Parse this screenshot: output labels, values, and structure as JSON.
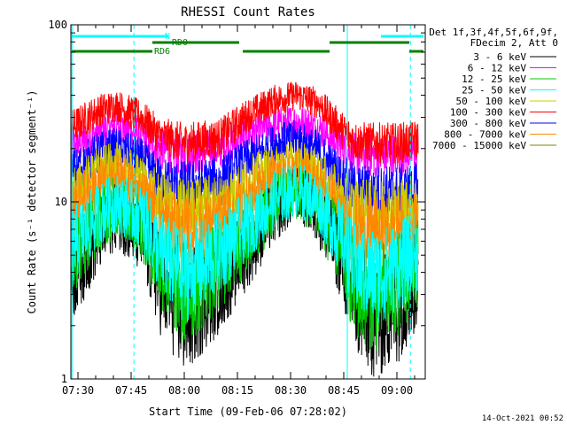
{
  "chart_data": {
    "type": "line",
    "title": "RHESSI Count Rates",
    "xlabel": "Start Time (09-Feb-06 07:28:02)",
    "ylabel": "Count Rate (s⁻¹ detector segment⁻¹)",
    "yscale": "log",
    "ylim": [
      1,
      100
    ],
    "xlim_minutes_since_0728": [
      0,
      100
    ],
    "x_ticks": [
      {
        "label": "07:30",
        "minute": 2
      },
      {
        "label": "07:45",
        "minute": 17
      },
      {
        "label": "08:00",
        "minute": 32
      },
      {
        "label": "08:15",
        "minute": 47
      },
      {
        "label": "08:30",
        "minute": 62
      },
      {
        "label": "08:45",
        "minute": 77
      },
      {
        "label": "09:00",
        "minute": 92
      }
    ],
    "y_tick_labels": [
      "1",
      "10",
      "100"
    ],
    "legend_header": [
      "Det 1f,3f,4f,5f,6f,9f,",
      "FDecim 2, Att 0"
    ],
    "legend_position": "right",
    "series": [
      {
        "name": "3 - 6 keV",
        "color": "#000000",
        "points": [
          [
            0,
            3.8
          ],
          [
            8,
            6.5
          ],
          [
            13,
            8.5
          ],
          [
            20,
            6.2
          ],
          [
            25,
            3.5
          ],
          [
            32,
            2.3
          ],
          [
            42,
            3.5
          ],
          [
            50,
            5.5
          ],
          [
            58,
            9.0
          ],
          [
            64,
            11.5
          ],
          [
            70,
            8.5
          ],
          [
            76,
            5.0
          ],
          [
            80,
            2.8
          ],
          [
            86,
            2.2
          ],
          [
            92,
            2.6
          ],
          [
            98,
            3.6
          ]
        ]
      },
      {
        "name": "6 - 12 keV",
        "color": "#ff00ff",
        "points": [
          [
            0,
            20
          ],
          [
            8,
            25
          ],
          [
            13,
            27
          ],
          [
            20,
            24
          ],
          [
            25,
            20
          ],
          [
            32,
            18.5
          ],
          [
            42,
            20
          ],
          [
            50,
            24
          ],
          [
            58,
            27.5
          ],
          [
            64,
            28.5
          ],
          [
            70,
            26
          ],
          [
            76,
            21
          ],
          [
            80,
            18.5
          ],
          [
            86,
            18.3
          ],
          [
            92,
            18.4
          ],
          [
            98,
            19.5
          ]
        ]
      },
      {
        "name": "12 - 25 keV",
        "color": "#00cc00",
        "points": [
          [
            0,
            5.0
          ],
          [
            8,
            8.0
          ],
          [
            13,
            9.5
          ],
          [
            20,
            7.5
          ],
          [
            25,
            4.5
          ],
          [
            32,
            3.0
          ],
          [
            42,
            4.3
          ],
          [
            50,
            6.5
          ],
          [
            58,
            10.0
          ],
          [
            64,
            11.5
          ],
          [
            70,
            9.0
          ],
          [
            76,
            5.5
          ],
          [
            80,
            3.3
          ],
          [
            86,
            2.9
          ],
          [
            92,
            3.4
          ],
          [
            98,
            4.4
          ]
        ]
      },
      {
        "name": "25 - 50 keV",
        "color": "#00ffff",
        "points": [
          [
            0,
            5.5
          ],
          [
            8,
            8.5
          ],
          [
            13,
            10.0
          ],
          [
            20,
            8.2
          ],
          [
            25,
            5.3
          ],
          [
            32,
            3.8
          ],
          [
            42,
            5.2
          ],
          [
            50,
            7.5
          ],
          [
            58,
            10.5
          ],
          [
            64,
            12.0
          ],
          [
            70,
            10.0
          ],
          [
            76,
            6.5
          ],
          [
            80,
            4.3
          ],
          [
            86,
            3.8
          ],
          [
            92,
            4.3
          ],
          [
            98,
            5.3
          ]
        ]
      },
      {
        "name": "50 - 100 keV",
        "color": "#cccc00",
        "points": [
          [
            0,
            11
          ],
          [
            8,
            15
          ],
          [
            13,
            16
          ],
          [
            20,
            13
          ],
          [
            25,
            10
          ],
          [
            32,
            9
          ],
          [
            42,
            10
          ],
          [
            50,
            13
          ],
          [
            58,
            15.5
          ],
          [
            64,
            17
          ],
          [
            70,
            14
          ],
          [
            76,
            10.5
          ],
          [
            80,
            9
          ],
          [
            86,
            9
          ],
          [
            92,
            9
          ],
          [
            98,
            10
          ]
        ]
      },
      {
        "name": "100 - 300 keV",
        "color": "#ff0000",
        "points": [
          [
            0,
            26
          ],
          [
            8,
            33
          ],
          [
            13,
            35
          ],
          [
            20,
            30
          ],
          [
            25,
            23.5
          ],
          [
            32,
            21.5
          ],
          [
            42,
            23
          ],
          [
            50,
            31
          ],
          [
            58,
            38
          ],
          [
            64,
            40
          ],
          [
            70,
            36
          ],
          [
            76,
            26
          ],
          [
            80,
            22
          ],
          [
            86,
            21.5
          ],
          [
            92,
            21.5
          ],
          [
            98,
            22.5
          ]
        ]
      },
      {
        "name": "300 - 800 keV",
        "color": "#0000ff",
        "points": [
          [
            0,
            14
          ],
          [
            8,
            19
          ],
          [
            13,
            20
          ],
          [
            20,
            17
          ],
          [
            25,
            13
          ],
          [
            32,
            12
          ],
          [
            42,
            13
          ],
          [
            50,
            17
          ],
          [
            58,
            21.5
          ],
          [
            64,
            22.5
          ],
          [
            70,
            19
          ],
          [
            76,
            13.5
          ],
          [
            80,
            11.5
          ],
          [
            86,
            11.2
          ],
          [
            92,
            11.2
          ],
          [
            98,
            11.8
          ]
        ]
      },
      {
        "name": "800 - 7000 keV",
        "color": "#ff8800",
        "points": [
          [
            0,
            9
          ],
          [
            8,
            12.5
          ],
          [
            13,
            13.5
          ],
          [
            20,
            11
          ],
          [
            25,
            8
          ],
          [
            32,
            6.5
          ],
          [
            42,
            7.3
          ],
          [
            50,
            10.5
          ],
          [
            58,
            13.8
          ],
          [
            64,
            15
          ],
          [
            70,
            12.5
          ],
          [
            76,
            8.5
          ],
          [
            80,
            7
          ],
          [
            86,
            6.7
          ],
          [
            92,
            6.8
          ],
          [
            98,
            7.5
          ]
        ]
      },
      {
        "name": "7000 - 15000 keV",
        "color": "#808000",
        "points": []
      }
    ],
    "annotations": [
      {
        "text": "N",
        "color": "#00ffff",
        "span_minutes": [
          0.3,
          27.5
        ],
        "level": 1
      },
      {
        "text": "",
        "color": "#00ffff",
        "span_minutes": [
          87.5,
          99.5
        ],
        "level": 1
      },
      {
        "text": "RD0",
        "color": "#008000",
        "span_minutes": [
          23,
          47.5
        ],
        "level": 2
      },
      {
        "text": "",
        "color": "#008000",
        "span_minutes": [
          73,
          95.5
        ],
        "level": 2
      },
      {
        "text": "RD6",
        "color": "#008000",
        "span_minutes": [
          0.3,
          23
        ],
        "level": 3
      },
      {
        "text": "",
        "color": "#008000",
        "span_minutes": [
          48.5,
          73
        ],
        "level": 3
      },
      {
        "text": "",
        "color": "#008000",
        "span_minutes": [
          95.5,
          99.5
        ],
        "level": 3
      }
    ],
    "vertical_markers": [
      {
        "minute": 0.3,
        "color": "#00ffff",
        "style": "solid"
      },
      {
        "minute": 17.8,
        "color": "#00ffff",
        "style": "dashed"
      },
      {
        "minute": 78,
        "color": "#00ffff",
        "style": "solid"
      },
      {
        "minute": 95.8,
        "color": "#00ffff",
        "style": "dashed"
      }
    ],
    "grid": false
  },
  "footer": {
    "timestamp": "14-Oct-2021 00:52"
  }
}
